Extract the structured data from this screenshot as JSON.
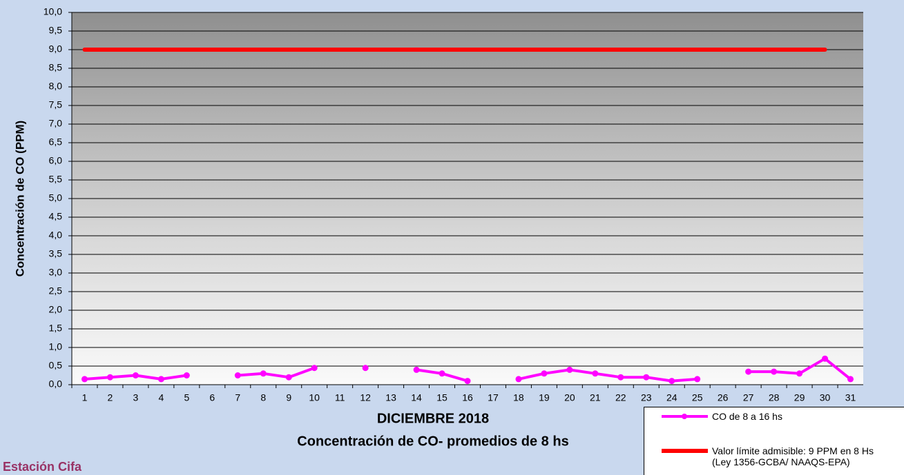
{
  "chart_data": {
    "type": "line",
    "title": "DICIEMBRE 2018",
    "subtitle": "Concentración de CO- promedios de 8 hs",
    "y_label": "Concentración de CO (PPM)",
    "annotation": "Estación Cifa",
    "categories": [
      "1",
      "2",
      "3",
      "4",
      "5",
      "6",
      "7",
      "8",
      "9",
      "10",
      "11",
      "12",
      "13",
      "14",
      "15",
      "16",
      "17",
      "18",
      "19",
      "20",
      "21",
      "22",
      "23",
      "24",
      "25",
      "26",
      "27",
      "28",
      "29",
      "30",
      "31"
    ],
    "series": [
      {
        "name": "CO de 8 a 16 hs",
        "color": "#ff00ff",
        "marker": "circle",
        "values": [
          0.15,
          0.2,
          0.25,
          0.15,
          0.25,
          null,
          0.25,
          0.3,
          0.2,
          0.45,
          null,
          0.45,
          null,
          0.4,
          0.3,
          0.1,
          null,
          0.15,
          0.3,
          0.4,
          0.3,
          0.2,
          0.2,
          0.1,
          0.15,
          null,
          0.35,
          0.35,
          0.3,
          0.7,
          0.15
        ]
      },
      {
        "name": "Valor límite admisible: 9 PPM en 8 Hs\n(Ley 1356-GCBA/ NAAQS-EPA)",
        "color": "#ff0000",
        "marker": "none",
        "values": [
          9,
          9,
          9,
          9,
          9,
          9,
          9,
          9,
          9,
          9,
          9,
          9,
          9,
          9,
          9,
          9,
          9,
          9,
          9,
          9,
          9,
          9,
          9,
          9,
          9,
          9,
          9,
          9,
          9,
          9,
          null
        ]
      }
    ],
    "ylim": [
      0,
      10
    ],
    "yticks": [
      {
        "value": 0,
        "label": "0,0"
      },
      {
        "value": 0.5,
        "label": "0,5"
      },
      {
        "value": 1,
        "label": "1,0"
      },
      {
        "value": 1.5,
        "label": "1,5"
      },
      {
        "value": 2,
        "label": "2,0"
      },
      {
        "value": 2.5,
        "label": "2,5"
      },
      {
        "value": 3,
        "label": "3,0"
      },
      {
        "value": 3.5,
        "label": "3,5"
      },
      {
        "value": 4,
        "label": "4,0"
      },
      {
        "value": 4.5,
        "label": "4,5"
      },
      {
        "value": 5,
        "label": "5,0"
      },
      {
        "value": 5.5,
        "label": "5,5"
      },
      {
        "value": 6,
        "label": "6,0"
      },
      {
        "value": 6.5,
        "label": "6,5"
      },
      {
        "value": 7,
        "label": "7,0"
      },
      {
        "value": 7.5,
        "label": "7,5"
      },
      {
        "value": 8,
        "label": "8,0"
      },
      {
        "value": 8.5,
        "label": "8,5"
      },
      {
        "value": 9,
        "label": "9,0"
      },
      {
        "value": 9.5,
        "label": "9,5"
      },
      {
        "value": 10,
        "label": "10,0"
      }
    ],
    "grid": true
  }
}
